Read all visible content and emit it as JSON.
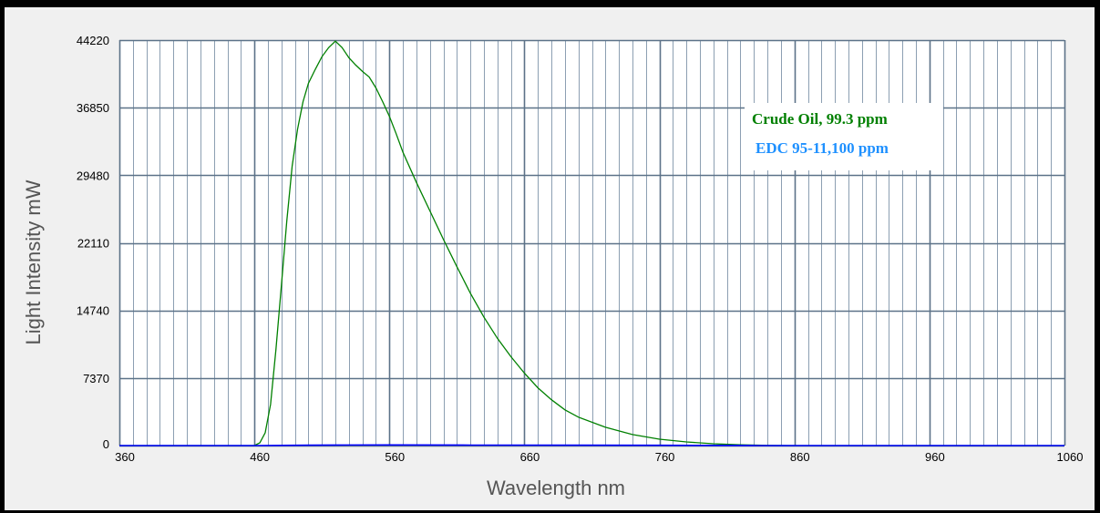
{
  "chart_data": {
    "type": "line",
    "xlabel": "Wavelength nm",
    "ylabel": "Light Intensity mW",
    "xlim": [
      360,
      1060
    ],
    "ylim": [
      0,
      44220
    ],
    "x_ticks": [
      "360",
      "460",
      "560",
      "660",
      "760",
      "860",
      "960",
      "1060"
    ],
    "y_ticks": [
      "0",
      "7370",
      "14740",
      "22110",
      "29480",
      "36850",
      "44220"
    ],
    "grid": true,
    "legend_position": "top-right",
    "series": [
      {
        "name": "Crude Oil, 99.3 ppm",
        "color": "#008000",
        "x": [
          360,
          460,
          464,
          468,
          472,
          476,
          480,
          484,
          488,
          492,
          496,
          500,
          505,
          510,
          515,
          520,
          525,
          530,
          535,
          540,
          545,
          550,
          555,
          560,
          565,
          570,
          580,
          590,
          600,
          610,
          620,
          630,
          640,
          650,
          660,
          670,
          680,
          690,
          700,
          720,
          740,
          760,
          780,
          800,
          820,
          840,
          860,
          900,
          960,
          1060
        ],
        "y": [
          0,
          0,
          300,
          1400,
          4500,
          10500,
          17500,
          24500,
          30500,
          34500,
          37500,
          39500,
          41000,
          42400,
          43400,
          44100,
          43400,
          42300,
          41500,
          40800,
          40200,
          39000,
          37500,
          35900,
          34000,
          32000,
          28700,
          25600,
          22500,
          19500,
          16600,
          14000,
          11700,
          9700,
          7900,
          6300,
          5000,
          3900,
          3100,
          2000,
          1200,
          700,
          400,
          200,
          80,
          20,
          0,
          0,
          0,
          0
        ]
      },
      {
        "name": "EDC 95-11,100 ppm",
        "color": "#1e90ff",
        "x": [
          360,
          460,
          500,
          520,
          560,
          620,
          700,
          760,
          800,
          830,
          831,
          860,
          1060
        ],
        "y": [
          0,
          0,
          40,
          60,
          70,
          50,
          40,
          30,
          20,
          10,
          0,
          0,
          0
        ]
      }
    ]
  }
}
